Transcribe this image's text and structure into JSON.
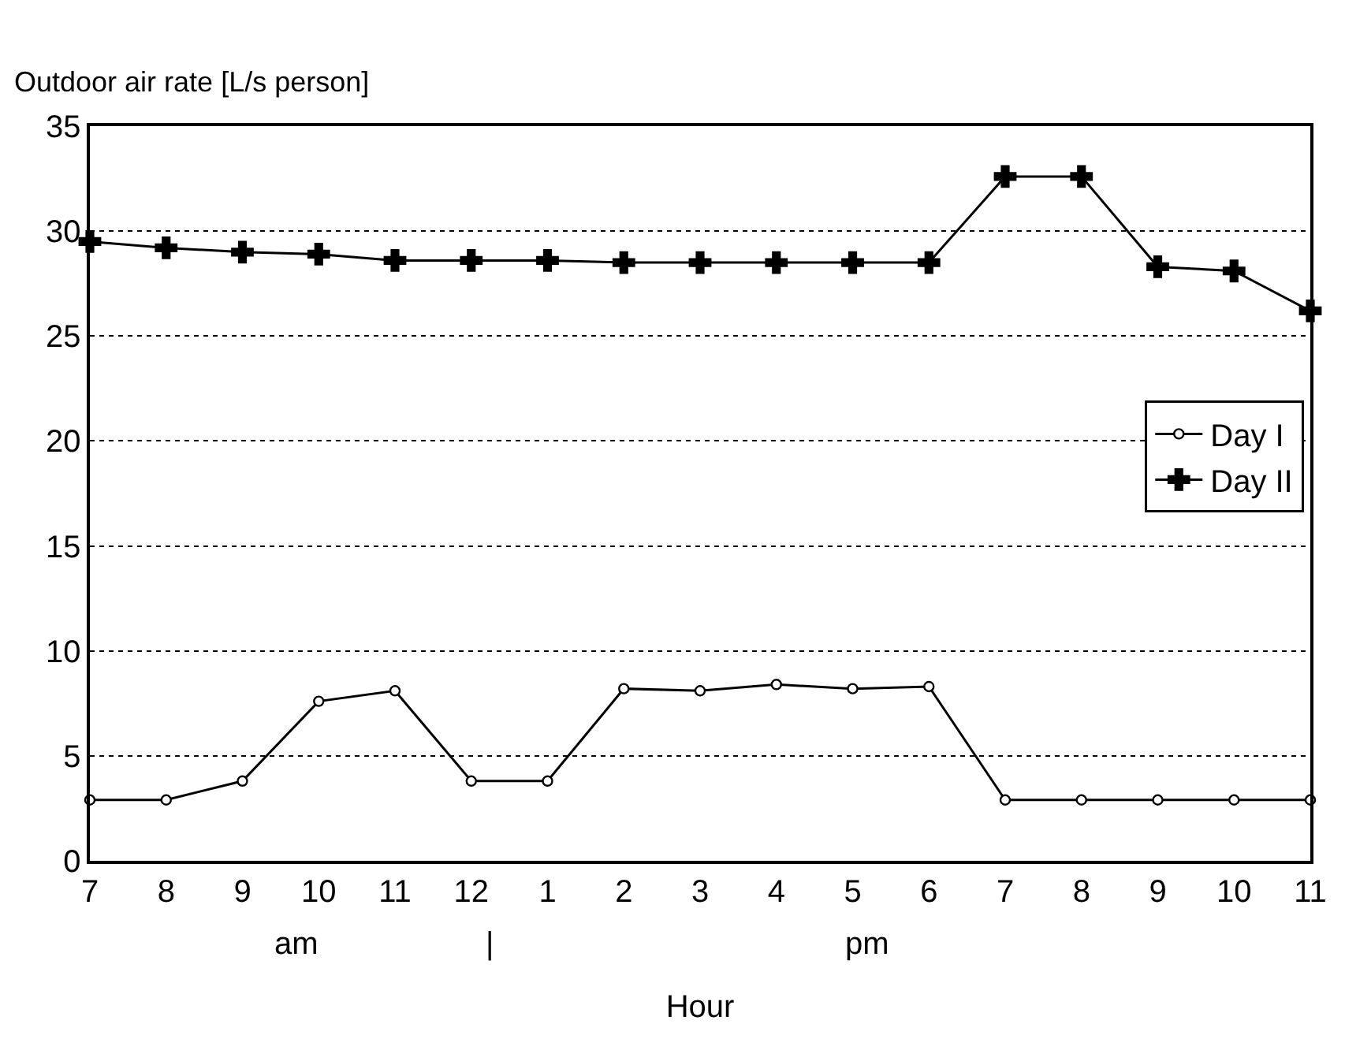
{
  "chart_data": {
    "type": "line",
    "ylabel": "Outdoor air rate [L/s person]",
    "xlabel": "Hour",
    "categories": [
      "7",
      "8",
      "9",
      "10",
      "11",
      "12",
      "1",
      "2",
      "3",
      "4",
      "5",
      "6",
      "7",
      "8",
      "9",
      "10",
      "11"
    ],
    "series": [
      {
        "name": "Day I",
        "color": "#000000",
        "marker": "circle",
        "values": [
          2.9,
          2.9,
          3.8,
          7.6,
          8.1,
          3.8,
          3.8,
          8.2,
          8.1,
          8.4,
          8.2,
          8.3,
          2.9,
          2.9,
          2.9,
          2.9,
          2.9
        ]
      },
      {
        "name": "Day II",
        "color": "#000000",
        "marker": "cross",
        "values": [
          29.5,
          29.2,
          29.0,
          28.9,
          28.6,
          28.6,
          28.6,
          28.5,
          28.5,
          28.5,
          28.5,
          28.5,
          32.6,
          32.6,
          28.3,
          28.1,
          26.2
        ]
      }
    ],
    "ylim": [
      0,
      35
    ],
    "yticks": [
      0,
      5,
      10,
      15,
      20,
      25,
      30,
      35
    ],
    "grid": "y",
    "legend": "right",
    "line_style": "solid",
    "annotations": [
      "am",
      "|",
      "pm"
    ]
  }
}
